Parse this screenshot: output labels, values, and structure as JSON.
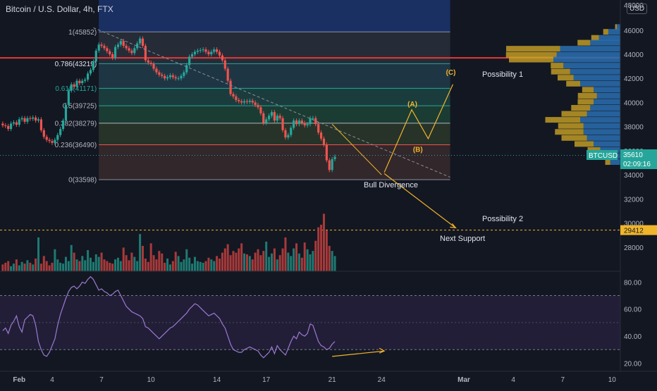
{
  "header": {
    "symbol_title": "Bitcoin / U.S. Dollar, 4h, FTX",
    "currency_badge": "USD"
  },
  "colors": {
    "background": "#131722",
    "up": "#26a69a",
    "down": "#ef5350",
    "volume_up": "#1f7a72",
    "volume_down": "#a83a3a",
    "rsi_line": "#9c7ad3",
    "rsi_band": "#2a2240",
    "annotation": "#f0b52a",
    "resistance_line": "#e53935",
    "support_line": "#f0b52a",
    "fib_label": "#b2b5be",
    "fib_0_786_label": "#e0e3eb",
    "fib_0_618_label": "#26a69a"
  },
  "chart_data": {
    "type": "candlestick",
    "title": "Bitcoin / U.S. Dollar, 4h, FTX",
    "price_axis": {
      "ticks": [
        28000,
        30000,
        32000,
        34000,
        36000,
        38000,
        40000,
        42000,
        44000,
        46000
      ],
      "partial_top_tick": "48000",
      "ylim": [
        26000,
        48500
      ]
    },
    "rsi_axis": {
      "ticks": [
        "80.00",
        "60.00",
        "40.00",
        "20.00"
      ],
      "ylim": [
        14,
        88
      ],
      "band": [
        30,
        70
      ],
      "midline": 50
    },
    "time_axis": {
      "labels": [
        {
          "label": "Feb",
          "t": 0
        },
        {
          "label": "4",
          "t": 12
        },
        {
          "label": "7",
          "t": 30
        },
        {
          "label": "10",
          "t": 48
        },
        {
          "label": "14",
          "t": 72
        },
        {
          "label": "17",
          "t": 90
        },
        {
          "label": "21",
          "t": 114
        },
        {
          "label": "24",
          "t": 132
        },
        {
          "label": "Mar",
          "t": 162
        },
        {
          "label": "4",
          "t": 180
        },
        {
          "label": "7",
          "t": 198
        },
        {
          "label": "10",
          "t": 216
        }
      ],
      "t_range": [
        -7,
        219
      ]
    },
    "fibonacci": {
      "levels": [
        {
          "ratio": "1",
          "price": 45852,
          "label": "1(45852)"
        },
        {
          "ratio": "0.786",
          "price": 43219,
          "label": "0.786(43219)"
        },
        {
          "ratio": "0.618",
          "price": 41171,
          "label": "0.618(41171)"
        },
        {
          "ratio": "0.5",
          "price": 39725,
          "label": "0.5(39725)"
        },
        {
          "ratio": "0.382",
          "price": 38279,
          "label": "0.382(38279)"
        },
        {
          "ratio": "0.236",
          "price": 36490,
          "label": "0.236(36490)"
        },
        {
          "ratio": "0",
          "price": 33598,
          "label": "0(33598)"
        }
      ],
      "t_start": 29,
      "t_end": 157
    },
    "candles_close": [
      38100,
      38050,
      37800,
      38250,
      38350,
      38150,
      38600,
      38700,
      38400,
      38700,
      38650,
      38750,
      38500,
      38600,
      37700,
      37150,
      36900,
      36800,
      36650,
      36900,
      37300,
      37800,
      38500,
      39800,
      41000,
      41500,
      41300,
      41800,
      41600,
      41800,
      41900,
      42400,
      42700,
      43400,
      44300,
      44800,
      44700,
      44500,
      44250,
      44000,
      43700,
      44600,
      44800,
      45100,
      44700,
      44500,
      44300,
      44100,
      44500,
      44900,
      45300,
      44700,
      43500,
      43300,
      43200,
      42800,
      42500,
      42300,
      42200,
      42000,
      42100,
      42250,
      42100,
      42000,
      42000,
      42200,
      42500,
      43100,
      43800,
      44000,
      44200,
      44300,
      44350,
      44400,
      44200,
      44000,
      44200,
      44400,
      44200,
      43900,
      43500,
      42800,
      41800,
      40700,
      40500,
      40200,
      40100,
      40000,
      40100,
      40050,
      40150,
      40000,
      39800,
      39600,
      39100,
      38300,
      38600,
      38900,
      39200,
      38500,
      38900,
      38700,
      37700,
      37100,
      37300,
      37900,
      38500,
      38200,
      38500,
      38300,
      38100,
      38200,
      38700,
      38700,
      38200,
      37500,
      37000,
      36500,
      35200,
      34400,
      35300,
      35500
    ],
    "candles_start": {
      "open": 38250,
      "t": -6
    },
    "volume_heights": [
      8,
      10,
      12,
      6,
      9,
      14,
      7,
      11,
      9,
      13,
      10,
      8,
      15,
      40,
      9,
      18,
      12,
      7,
      10,
      26,
      14,
      10,
      9,
      17,
      12,
      31,
      22,
      14,
      12,
      18,
      13,
      25,
      16,
      11,
      20,
      17,
      22,
      14,
      12,
      10,
      9,
      14,
      16,
      12,
      28,
      19,
      13,
      22,
      17,
      12,
      44,
      30,
      15,
      11,
      33,
      19,
      14,
      24,
      21,
      10,
      15,
      8,
      12,
      23,
      18,
      11,
      14,
      26,
      16,
      9,
      17,
      12,
      11,
      10,
      12,
      16,
      14,
      12,
      18,
      15,
      22,
      27,
      32,
      19,
      24,
      22,
      27,
      33,
      21,
      20,
      18,
      14,
      22,
      26,
      19,
      24,
      35,
      17,
      21,
      27,
      14,
      19,
      27,
      40,
      22,
      18,
      27,
      33,
      21,
      16,
      34,
      26,
      20,
      24,
      36,
      52,
      55,
      68,
      48,
      30,
      24,
      18
    ],
    "rsi": [
      44,
      46,
      42,
      48,
      51,
      55,
      47,
      43,
      52,
      54,
      56,
      55,
      48,
      36,
      30,
      26,
      25,
      28,
      33,
      38,
      48,
      56,
      62,
      68,
      73,
      76,
      77,
      75,
      77,
      80,
      79,
      82,
      84,
      82,
      78,
      74,
      75,
      73,
      72,
      70,
      71,
      73,
      74,
      70,
      66,
      62,
      60,
      58,
      57,
      56,
      55,
      53,
      47,
      46,
      44,
      42,
      40,
      38,
      40,
      42,
      44,
      46,
      47,
      49,
      51,
      53,
      55,
      57,
      60,
      62,
      64,
      63,
      61,
      59,
      57,
      55,
      56,
      57,
      55,
      53,
      49,
      46,
      40,
      34,
      30,
      29,
      28,
      28,
      30,
      31,
      32,
      31,
      30,
      29,
      26,
      24,
      26,
      28,
      32,
      27,
      33,
      30,
      28,
      26,
      31,
      36,
      40,
      38,
      43,
      41,
      40,
      42,
      49,
      48,
      42,
      36,
      33,
      32,
      30,
      31,
      34,
      36
    ],
    "rsi_divergence": {
      "from": [
        114,
        25
      ],
      "to": [
        133,
        29
      ]
    }
  },
  "fib_block": {
    "label": "0.618(41171)",
    "band_top_price": 49300
  },
  "horizontal_lines": {
    "resistance": {
      "price": 43700
    },
    "support": {
      "price": 29412,
      "badge": "29412"
    }
  },
  "price_badge": {
    "symbol": "BTCUSD",
    "price": "35610",
    "countdown": "02:09:16"
  },
  "annotations": {
    "possibility_1": "Possibility 1",
    "possibility_2": "Possibility 2",
    "bull_divergence": "Bull Divergence",
    "next_support": "Next Support",
    "wave_a": "(A)",
    "wave_b": "(B)",
    "wave_c": "(C)"
  },
  "volume_profile": [
    {
      "price": 46200,
      "blue": 5,
      "yellow": 3
    },
    {
      "price": 45800,
      "blue": 18,
      "yellow": 8
    },
    {
      "price": 45300,
      "blue": 32,
      "yellow": 12
    },
    {
      "price": 44900,
      "blue": 45,
      "yellow": 20
    },
    {
      "price": 44400,
      "blue": 90,
      "yellow": 85
    },
    {
      "price": 43900,
      "blue": 95,
      "yellow": 80
    },
    {
      "price": 43500,
      "blue": 100,
      "yellow": 70
    },
    {
      "price": 43000,
      "blue": 85,
      "yellow": 20
    },
    {
      "price": 42500,
      "blue": 75,
      "yellow": 30
    },
    {
      "price": 42000,
      "blue": 70,
      "yellow": 25
    },
    {
      "price": 41500,
      "blue": 60,
      "yellow": 22
    },
    {
      "price": 41000,
      "blue": 40,
      "yellow": 18
    },
    {
      "price": 40500,
      "blue": 35,
      "yellow": 30
    },
    {
      "price": 40000,
      "blue": 40,
      "yellow": 25
    },
    {
      "price": 39500,
      "blue": 45,
      "yellow": 30
    },
    {
      "price": 39000,
      "blue": 50,
      "yellow": 40
    },
    {
      "price": 38500,
      "blue": 60,
      "yellow": 55
    },
    {
      "price": 38000,
      "blue": 55,
      "yellow": 40
    },
    {
      "price": 37500,
      "blue": 55,
      "yellow": 45
    },
    {
      "price": 37000,
      "blue": 50,
      "yellow": 40
    },
    {
      "price": 36500,
      "blue": 40,
      "yellow": 30
    },
    {
      "price": 36000,
      "blue": 30,
      "yellow": 20
    },
    {
      "price": 35500,
      "blue": 25,
      "yellow": 15
    },
    {
      "price": 35000,
      "blue": 15,
      "yellow": 8
    }
  ]
}
